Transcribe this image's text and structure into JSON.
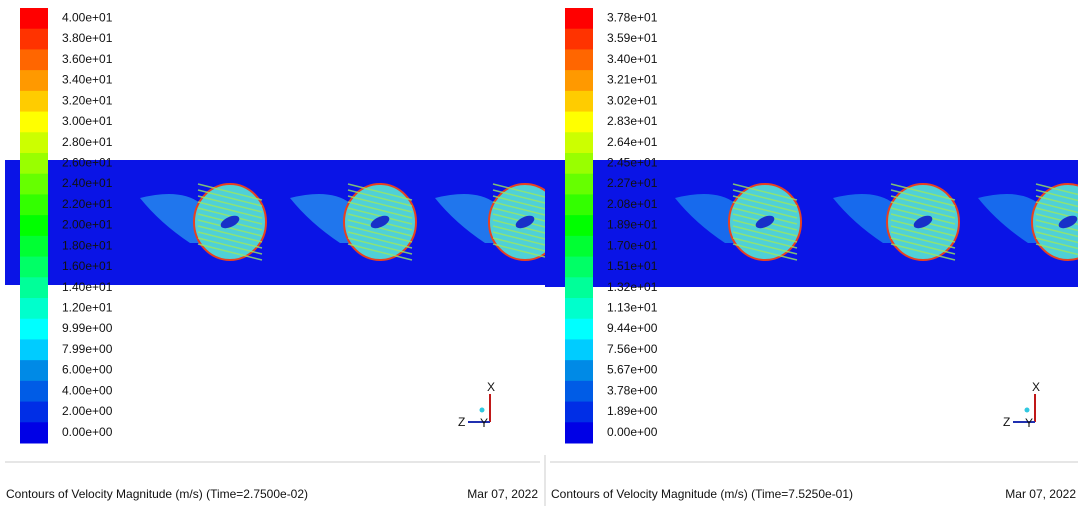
{
  "panels": [
    {
      "colorbar": [
        "4.00e+01",
        "3.80e+01",
        "3.60e+01",
        "3.40e+01",
        "3.20e+01",
        "3.00e+01",
        "2.80e+01",
        "2.60e+01",
        "2.40e+01",
        "2.20e+01",
        "2.00e+01",
        "1.80e+01",
        "1.60e+01",
        "1.40e+01",
        "1.20e+01",
        "9.99e+00",
        "7.99e+00",
        "6.00e+00",
        "4.00e+00",
        "2.00e+00",
        "0.00e+00"
      ],
      "caption": "Contours of Velocity Magnitude (m/s)  (Time=2.7500e-02)",
      "date": "Mar 07, 2022",
      "axes": {
        "x": "X",
        "y": "Y",
        "z": "Z"
      }
    },
    {
      "colorbar": [
        "3.78e+01",
        "3.59e+01",
        "3.40e+01",
        "3.21e+01",
        "3.02e+01",
        "2.83e+01",
        "2.64e+01",
        "2.45e+01",
        "2.27e+01",
        "2.08e+01",
        "1.89e+01",
        "1.70e+01",
        "1.51e+01",
        "1.32e+01",
        "1.13e+01",
        "9.44e+00",
        "7.56e+00",
        "5.67e+00",
        "3.78e+00",
        "1.89e+00",
        "0.00e+00"
      ],
      "caption": "Contours of Velocity Magnitude (m/s)  (Time=7.5250e-01)",
      "date": "Mar 07, 2022",
      "axes": {
        "x": "X",
        "y": "Y",
        "z": "Z"
      }
    }
  ]
}
